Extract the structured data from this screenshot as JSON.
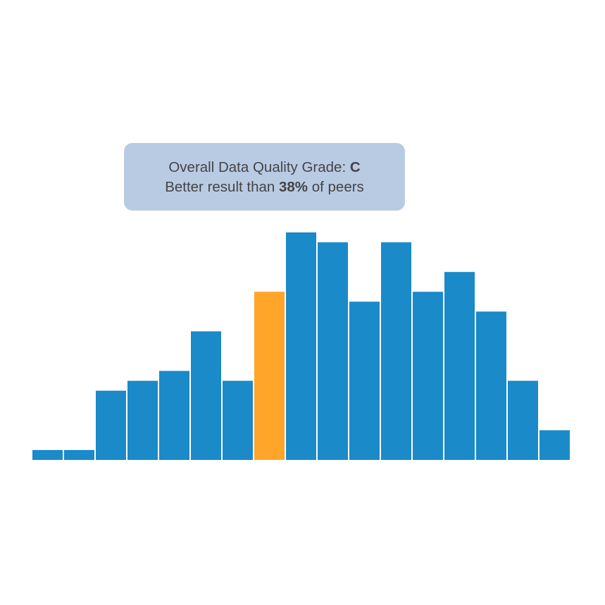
{
  "colors": {
    "bar": "#1a8ac9",
    "highlight": "#ffa52a",
    "tooltip_bg": "#b9cbe3",
    "text": "#444444"
  },
  "tooltip": {
    "line1_prefix": "Overall Data Quality Grade: ",
    "grade": "C",
    "line2_prefix": "Better result than ",
    "percent": "38%",
    "line2_suffix": " of peers"
  },
  "chart_data": {
    "type": "bar",
    "title": "",
    "xlabel": "",
    "ylabel": "",
    "values": [
      1,
      1,
      7,
      8,
      9,
      13,
      8,
      17,
      23,
      22,
      16,
      22,
      17,
      19,
      15,
      8,
      3
    ],
    "highlight_index": 7,
    "ylim": [
      0,
      23
    ],
    "grid": false,
    "legend": "none"
  }
}
